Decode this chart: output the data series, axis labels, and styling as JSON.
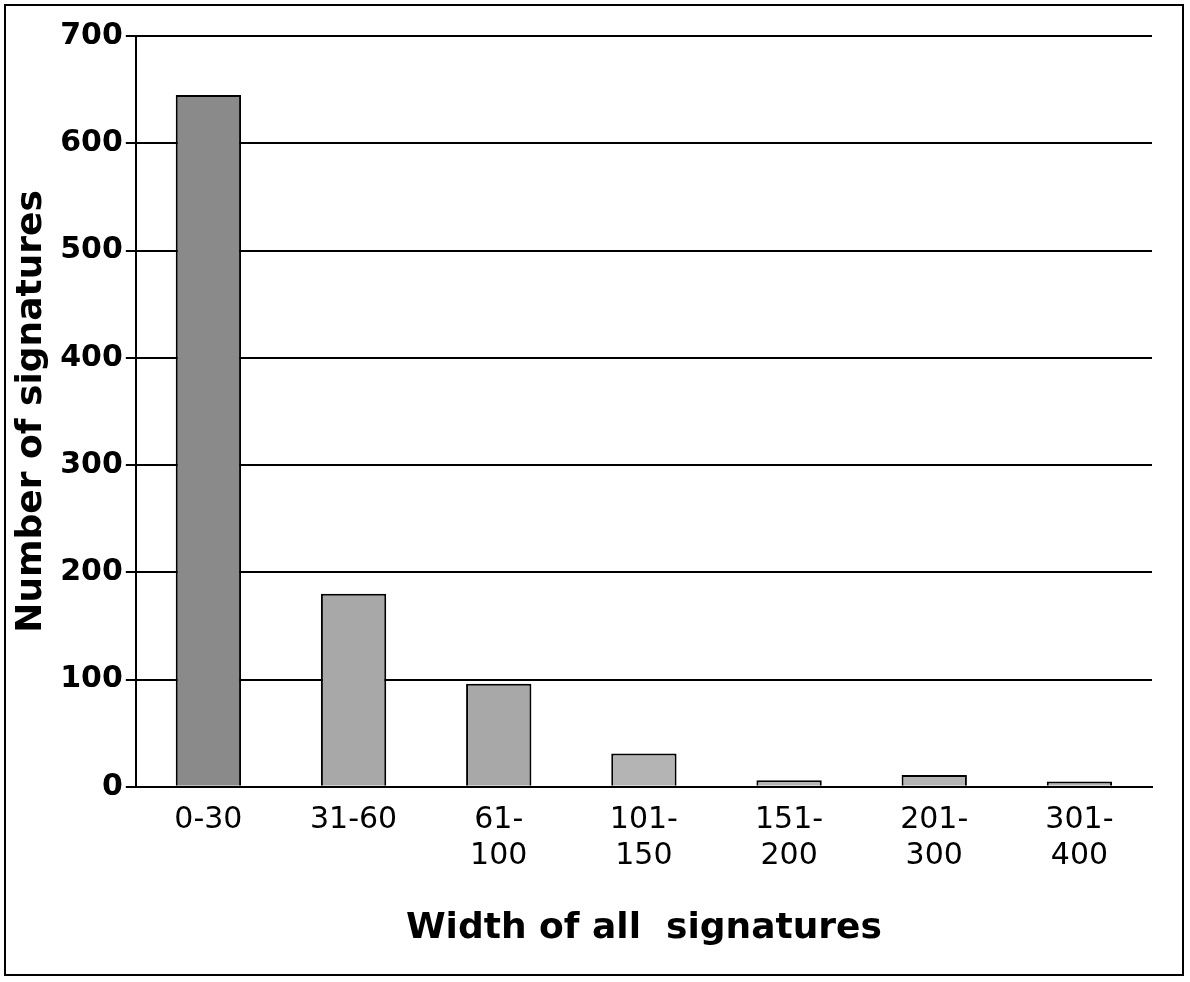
{
  "chart_data": {
    "type": "bar",
    "xlabel": "Width of all  signatures",
    "ylabel": "Number of signatures",
    "categories": [
      "0-30",
      "31-60",
      "61-100",
      "101-150",
      "151-200",
      "201-300",
      "301-400"
    ],
    "values": [
      645,
      180,
      96,
      31,
      6,
      11,
      5
    ],
    "colors": [
      "#8a8a8a",
      "#a8a8a8",
      "#a8a8a8",
      "#b4b4b4",
      "#b4b4b4",
      "#b4b4b4",
      "#b4b4b4"
    ],
    "ylim": [
      0,
      700
    ],
    "yticks": [
      0,
      100,
      200,
      300,
      400,
      500,
      600,
      700
    ],
    "grid": "y"
  }
}
